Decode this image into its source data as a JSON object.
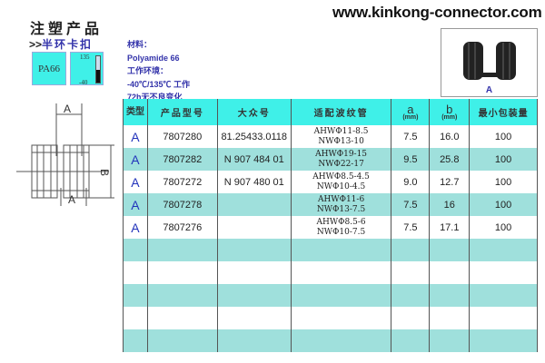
{
  "website": "www.kinkong-connector.com",
  "title": "注塑产品",
  "subtitle_prefix": ">>",
  "subtitle": "半环卡扣",
  "material_badge": "PA66",
  "temp_badge": {
    "max": "135",
    "min": "-40",
    "level_fraction": 0.5
  },
  "specs": {
    "material_label": "材料：",
    "material": "Polyamide 66",
    "env_label": "工作环境：",
    "temp_range": "-40℃/135℃ 工作",
    "endurance": "72h无不良变化"
  },
  "photo": {
    "label": "A",
    "icon": "half-ring-clip-photo"
  },
  "drawing": {
    "dim_a": "A",
    "dim_b": "B"
  },
  "table": {
    "headers": {
      "type": "类型",
      "part_no": "产品型号",
      "vw_no": "大众号",
      "pipe": "适配波纹管",
      "a": "a",
      "a_unit": "(mm)",
      "b": "b",
      "b_unit": "(mm)",
      "min_pack": "最小包装量"
    },
    "rows": [
      {
        "type": "A",
        "part_no": "7807280",
        "vw_no": "81.25433.0118",
        "pipe1": "AHWΦ11-8.5",
        "pipe2": "NWΦ13-10",
        "a": "7.5",
        "b": "16.0",
        "min_pack": "100"
      },
      {
        "type": "A",
        "part_no": "7807282",
        "vw_no": "N 907 484 01",
        "pipe1": "AHWΦ19-15",
        "pipe2": "NWΦ22-17",
        "a": "9.5",
        "b": "25.8",
        "min_pack": "100"
      },
      {
        "type": "A",
        "part_no": "7807272",
        "vw_no": "N 907 480 01",
        "pipe1": "AHWΦ8.5-4.5",
        "pipe2": "NWΦ10-4.5",
        "a": "9.0",
        "b": "12.7",
        "min_pack": "100"
      },
      {
        "type": "A",
        "part_no": "7807278",
        "vw_no": "",
        "pipe1": "AHWΦ11-6",
        "pipe2": "NWΦ13-7.5",
        "a": "7.5",
        "b": "16",
        "min_pack": "100"
      },
      {
        "type": "A",
        "part_no": "7807276",
        "vw_no": "",
        "pipe1": "AHWΦ8.5-6",
        "pipe2": "NWΦ10-7.5",
        "a": "7.5",
        "b": "17.1",
        "min_pack": "100"
      }
    ]
  },
  "colors": {
    "header": "#3ff0e8",
    "stripe": "#9fe0dc",
    "accent": "#3333aa"
  }
}
